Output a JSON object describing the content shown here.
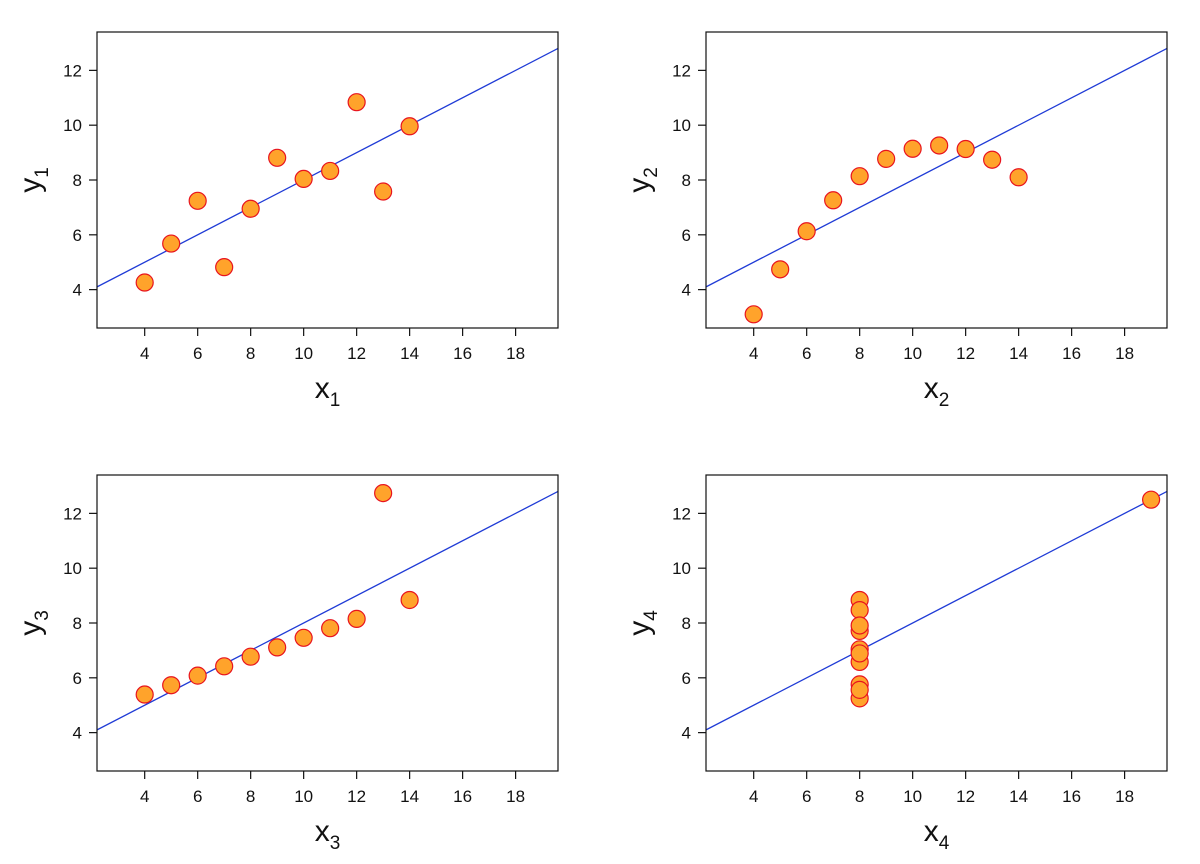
{
  "figure": {
    "background": "#ffffff"
  },
  "style": {
    "point_fill": "#ffa32b",
    "point_stroke": "#e8141e",
    "line_color": "#1f3bd6",
    "axis_color": "#111111"
  },
  "chart_data": [
    {
      "type": "scatter",
      "xlabel": "x",
      "xlabel_sub": "1",
      "ylabel": "y",
      "ylabel_sub": "1",
      "xlim": [
        2.2,
        19.6
      ],
      "ylim": [
        2.6,
        13.4
      ],
      "xticks": [
        4,
        6,
        8,
        10,
        12,
        14,
        16,
        18
      ],
      "yticks": [
        4,
        6,
        8,
        10,
        12
      ],
      "grid": false,
      "points": {
        "x": [
          10,
          8,
          13,
          9,
          11,
          14,
          6,
          4,
          12,
          7,
          5
        ],
        "y": [
          8.04,
          6.95,
          7.58,
          8.81,
          8.33,
          9.96,
          7.24,
          4.26,
          10.84,
          4.82,
          5.68
        ]
      },
      "fit_line": {
        "intercept": 3.0,
        "slope": 0.5
      }
    },
    {
      "type": "scatter",
      "xlabel": "x",
      "xlabel_sub": "2",
      "ylabel": "y",
      "ylabel_sub": "2",
      "xlim": [
        2.2,
        19.6
      ],
      "ylim": [
        2.6,
        13.4
      ],
      "xticks": [
        4,
        6,
        8,
        10,
        12,
        14,
        16,
        18
      ],
      "yticks": [
        4,
        6,
        8,
        10,
        12
      ],
      "grid": false,
      "points": {
        "x": [
          10,
          8,
          13,
          9,
          11,
          14,
          6,
          4,
          12,
          7,
          5
        ],
        "y": [
          9.14,
          8.14,
          8.74,
          8.77,
          9.26,
          8.1,
          6.13,
          3.1,
          9.13,
          7.26,
          4.74
        ]
      },
      "fit_line": {
        "intercept": 3.0,
        "slope": 0.5
      }
    },
    {
      "type": "scatter",
      "xlabel": "x",
      "xlabel_sub": "3",
      "ylabel": "y",
      "ylabel_sub": "3",
      "xlim": [
        2.2,
        19.6
      ],
      "ylim": [
        2.6,
        13.4
      ],
      "xticks": [
        4,
        6,
        8,
        10,
        12,
        14,
        16,
        18
      ],
      "yticks": [
        4,
        6,
        8,
        10,
        12
      ],
      "grid": false,
      "points": {
        "x": [
          10,
          8,
          13,
          9,
          11,
          14,
          6,
          4,
          12,
          7,
          5
        ],
        "y": [
          7.46,
          6.77,
          12.74,
          7.11,
          7.81,
          8.84,
          6.08,
          5.39,
          8.15,
          6.42,
          5.73
        ]
      },
      "fit_line": {
        "intercept": 3.0,
        "slope": 0.5
      }
    },
    {
      "type": "scatter",
      "xlabel": "x",
      "xlabel_sub": "4",
      "ylabel": "y",
      "ylabel_sub": "4",
      "xlim": [
        2.2,
        19.6
      ],
      "ylim": [
        2.6,
        13.4
      ],
      "xticks": [
        4,
        6,
        8,
        10,
        12,
        14,
        16,
        18
      ],
      "yticks": [
        4,
        6,
        8,
        10,
        12
      ],
      "grid": false,
      "points": {
        "x": [
          8,
          8,
          8,
          8,
          8,
          8,
          8,
          19,
          8,
          8,
          8
        ],
        "y": [
          6.58,
          5.76,
          7.71,
          8.84,
          8.47,
          7.04,
          5.25,
          12.5,
          5.56,
          7.91,
          6.89
        ]
      },
      "fit_line": {
        "intercept": 3.0,
        "slope": 0.5
      }
    }
  ]
}
